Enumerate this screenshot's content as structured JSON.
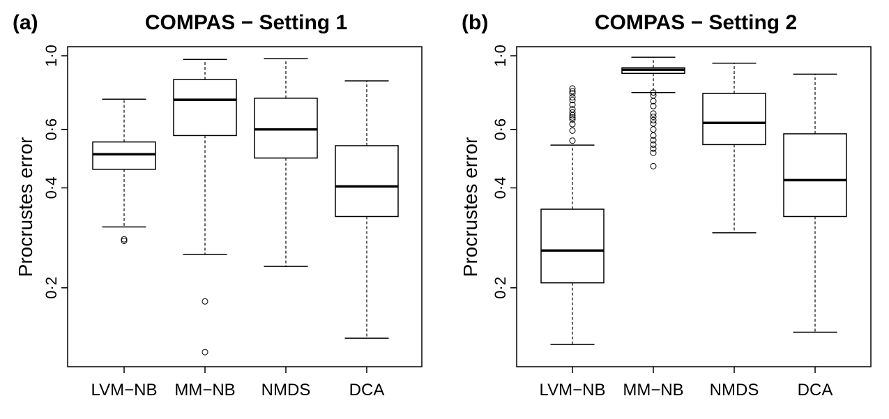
{
  "chart_data": [
    {
      "type": "boxplot",
      "panel_label": "(a)",
      "title": "COMPAS − Setting 1",
      "ylabel": "Procrustes error",
      "y_scale": "log",
      "ylim": [
        0.125,
        1.0
      ],
      "y_ticks": [
        0.2,
        0.4,
        0.6,
        1.0
      ],
      "y_tick_labels": [
        "0·2",
        "0·4",
        "0·6",
        "1·0"
      ],
      "categories": [
        "LVM−NB",
        "MM−NB",
        "NMDS",
        "DCA"
      ],
      "boxes": [
        {
          "whisker_low": 0.305,
          "q1": 0.455,
          "median": 0.505,
          "q3": 0.55,
          "whisker_high": 0.74,
          "outliers": [
            0.28,
            0.277
          ]
        },
        {
          "whisker_low": 0.252,
          "q1": 0.575,
          "median": 0.737,
          "q3": 0.848,
          "whisker_high": 0.975,
          "outliers": [
            0.182,
            0.128
          ]
        },
        {
          "whisker_low": 0.232,
          "q1": 0.492,
          "median": 0.6,
          "q3": 0.745,
          "whisker_high": 0.98,
          "outliers": []
        },
        {
          "whisker_low": 0.141,
          "q1": 0.328,
          "median": 0.404,
          "q3": 0.536,
          "whisker_high": 0.84,
          "outliers": []
        }
      ]
    },
    {
      "type": "boxplot",
      "panel_label": "(b)",
      "title": "COMPAS − Setting 2",
      "ylabel": "Procrustes error",
      "y_scale": "log",
      "ylim": [
        0.125,
        1.0
      ],
      "y_ticks": [
        0.2,
        0.4,
        0.6,
        1.0
      ],
      "y_tick_labels": [
        "0·2",
        "0·4",
        "0·6",
        "1·0"
      ],
      "categories": [
        "LVM−NB",
        "MM−NB",
        "NMDS",
        "DCA"
      ],
      "boxes": [
        {
          "whisker_low": 0.135,
          "q1": 0.207,
          "median": 0.259,
          "q3": 0.345,
          "whisker_high": 0.538,
          "outliers": [
            0.555,
            0.595,
            0.622,
            0.643,
            0.652,
            0.662,
            0.675,
            0.69,
            0.712,
            0.735,
            0.75,
            0.77,
            0.782,
            0.797
          ]
        },
        {
          "whisker_low": 0.775,
          "q1": 0.885,
          "median": 0.907,
          "q3": 0.92,
          "whisker_high": 0.99,
          "outliers": [
            0.465,
            0.51,
            0.525,
            0.54,
            0.557,
            0.575,
            0.6,
            0.625,
            0.64,
            0.655,
            0.67,
            0.705,
            0.73,
            0.76,
            0.775
          ]
        },
        {
          "whisker_low": 0.293,
          "q1": 0.54,
          "median": 0.628,
          "q3": 0.77,
          "whisker_high": 0.95,
          "outliers": []
        },
        {
          "whisker_low": 0.147,
          "q1": 0.328,
          "median": 0.422,
          "q3": 0.582,
          "whisker_high": 0.88,
          "outliers": []
        }
      ]
    }
  ]
}
